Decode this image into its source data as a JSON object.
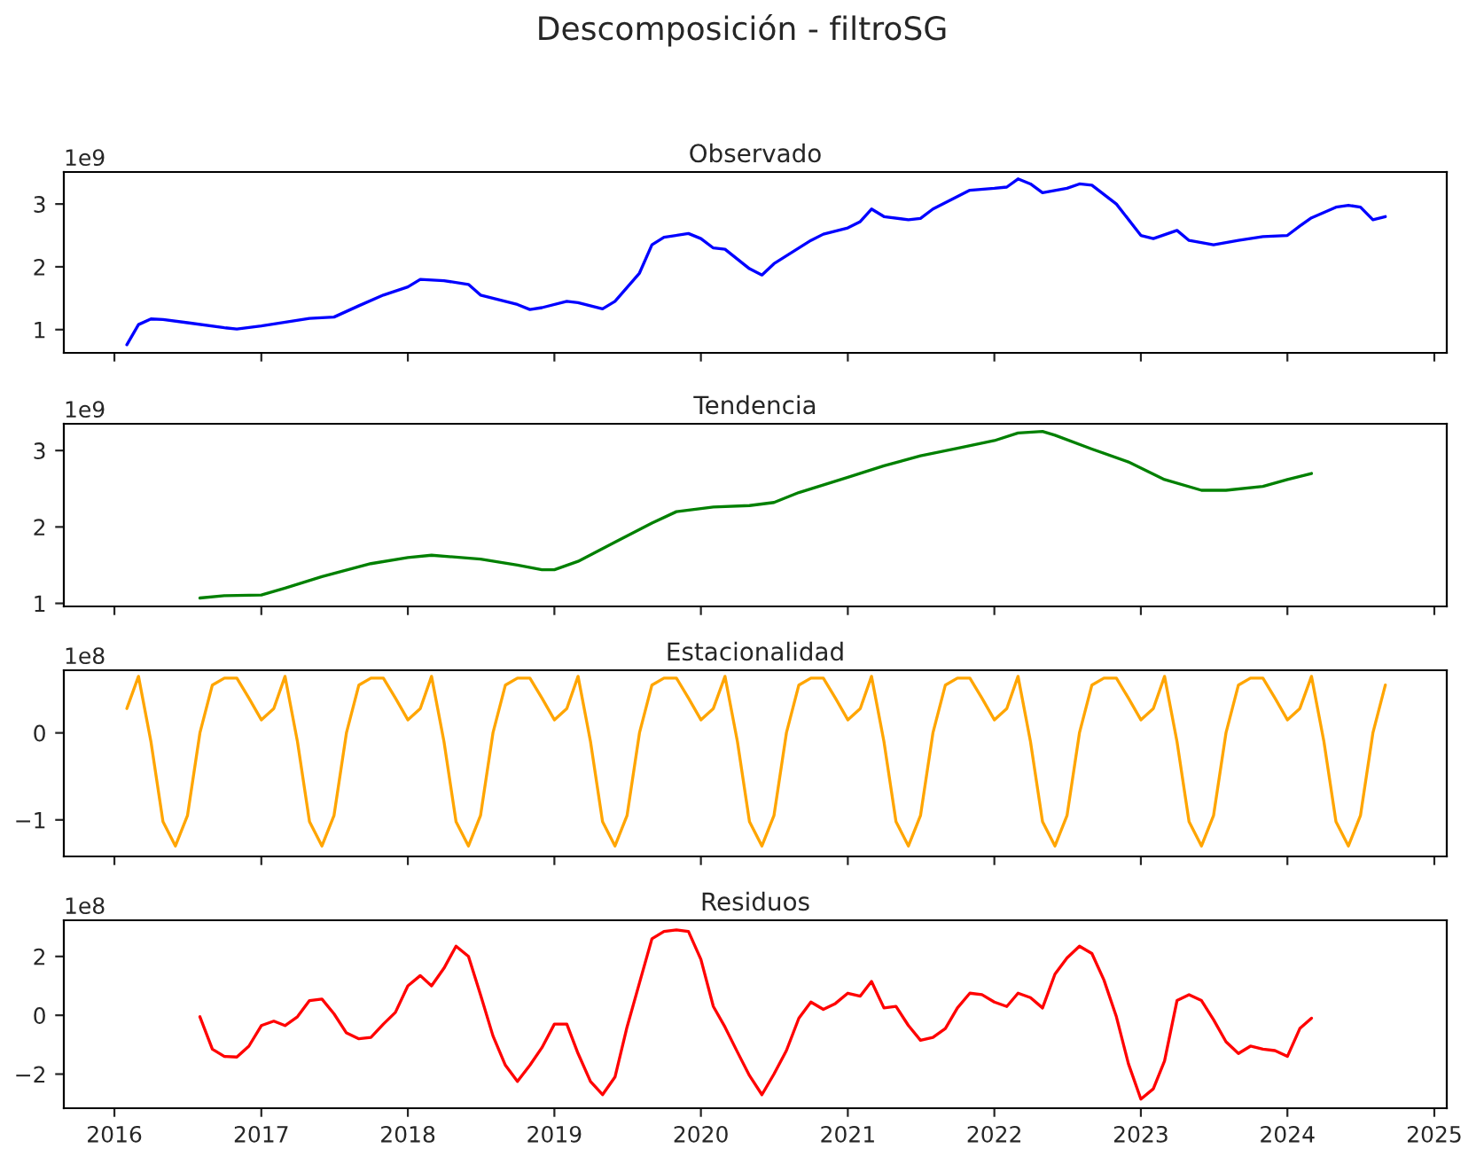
{
  "chart_data": [
    {
      "type": "line",
      "title": "Observado",
      "annotations": [
        "Descomposición - filtroSG",
        "1e9"
      ],
      "tick_labels": "y",
      "xlim": [
        "2015-08-28",
        "2025-02-01"
      ],
      "ylim": [
        0.63,
        3.51
      ],
      "yticks": [
        1,
        2,
        3
      ],
      "grid": false,
      "marker": "none",
      "line_style": "solid",
      "series": [
        {
          "color": "#0000ff",
          "x": [
            "2016-02",
            "2016-03",
            "2016-04",
            "2016-05",
            "2016-07",
            "2016-10",
            "2016-11",
            "2017-01",
            "2017-05",
            "2017-07",
            "2017-09",
            "2017-11",
            "2018-01",
            "2018-02",
            "2018-04",
            "2018-06",
            "2018-07",
            "2018-10",
            "2018-11",
            "2018-12",
            "2019-02",
            "2019-03",
            "2019-05",
            "2019-06",
            "2019-08",
            "2019-09",
            "2019-10",
            "2019-12",
            "2020-01",
            "2020-02",
            "2020-03",
            "2020-05",
            "2020-06",
            "2020-07",
            "2020-10",
            "2020-11",
            "2021-01",
            "2021-02",
            "2021-03",
            "2021-04",
            "2021-06",
            "2021-07",
            "2021-08",
            "2021-11",
            "2022-01",
            "2022-02",
            "2022-03",
            "2022-04",
            "2022-05",
            "2022-07",
            "2022-08",
            "2022-09",
            "2022-11",
            "2023-01",
            "2023-02",
            "2023-04",
            "2023-05",
            "2023-07",
            "2023-09",
            "2023-11",
            "2024-01",
            "2024-02",
            "2024-03",
            "2024-05",
            "2024-06",
            "2024-07",
            "2024-08",
            "2024-09"
          ],
          "values": [
            0.76,
            1.08,
            1.17,
            1.16,
            1.11,
            1.03,
            1.01,
            1.06,
            1.18,
            1.2,
            1.38,
            1.55,
            1.68,
            1.8,
            1.78,
            1.72,
            1.55,
            1.4,
            1.32,
            1.35,
            1.45,
            1.43,
            1.33,
            1.45,
            1.9,
            2.35,
            2.47,
            2.53,
            2.45,
            2.3,
            2.28,
            1.97,
            1.87,
            2.05,
            2.42,
            2.52,
            2.62,
            2.72,
            2.92,
            2.8,
            2.75,
            2.77,
            2.92,
            3.22,
            3.25,
            3.27,
            3.4,
            3.32,
            3.18,
            3.25,
            3.32,
            3.3,
            3.0,
            2.5,
            2.45,
            2.58,
            2.42,
            2.35,
            2.42,
            2.48,
            2.5,
            2.65,
            2.78,
            2.95,
            2.98,
            2.95,
            2.75,
            2.8
          ]
        }
      ]
    },
    {
      "type": "line",
      "title": "Tendencia",
      "annotations": [
        "1e9"
      ],
      "tick_labels": "y",
      "xlim": [
        "2015-08-28",
        "2025-02-01"
      ],
      "ylim": [
        0.96,
        3.35
      ],
      "yticks": [
        1,
        2,
        3
      ],
      "grid": false,
      "marker": "none",
      "line_style": "solid",
      "series": [
        {
          "color": "#008000",
          "x": [
            "2016-08",
            "2016-10",
            "2017-01",
            "2017-03",
            "2017-06",
            "2017-10",
            "2018-01",
            "2018-03",
            "2018-07",
            "2018-10",
            "2018-12",
            "2019-01",
            "2019-03",
            "2019-06",
            "2019-09",
            "2019-11",
            "2020-02",
            "2020-05",
            "2020-07",
            "2020-09",
            "2021-01",
            "2021-04",
            "2021-07",
            "2021-10",
            "2022-01",
            "2022-03",
            "2022-05",
            "2022-06",
            "2022-09",
            "2022-12",
            "2023-03",
            "2023-06",
            "2023-08",
            "2023-11",
            "2024-01",
            "2024-03"
          ],
          "values": [
            1.07,
            1.1,
            1.11,
            1.2,
            1.35,
            1.52,
            1.6,
            1.63,
            1.58,
            1.5,
            1.44,
            1.44,
            1.55,
            1.8,
            2.05,
            2.2,
            2.26,
            2.28,
            2.32,
            2.45,
            2.65,
            2.8,
            2.93,
            3.03,
            3.13,
            3.23,
            3.25,
            3.2,
            3.02,
            2.85,
            2.62,
            2.48,
            2.48,
            2.53,
            2.62,
            2.7
          ]
        }
      ]
    },
    {
      "type": "line",
      "title": "Estacionalidad",
      "annotations": [
        "1e8"
      ],
      "tick_labels": "y",
      "xlim": [
        "2015-08-28",
        "2025-02-01"
      ],
      "ylim": [
        -1.42,
        0.72
      ],
      "yticks": [
        {
          "value": -1,
          "label": "−1"
        },
        0
      ],
      "grid": false,
      "marker": "none",
      "line_style": "solid",
      "series": [
        {
          "color": "#ffa500",
          "x": [
            "2016-02",
            "2016-03",
            "2016-04",
            "2016-05",
            "2016-06",
            "2016-07",
            "2016-08",
            "2016-09",
            "2016-10",
            "2016-11",
            "2016-12",
            "2017-01",
            "2017-02",
            "2017-03",
            "2017-04",
            "2017-05",
            "2017-06",
            "2017-07",
            "2017-08",
            "2017-09",
            "2017-10",
            "2017-11",
            "2017-12",
            "2018-01",
            "2018-02",
            "2018-03",
            "2018-04",
            "2018-05",
            "2018-06",
            "2018-07",
            "2018-08",
            "2018-09",
            "2018-10",
            "2018-11",
            "2018-12",
            "2019-01",
            "2019-02",
            "2019-03",
            "2019-04",
            "2019-05",
            "2019-06",
            "2019-07",
            "2019-08",
            "2019-09",
            "2019-10",
            "2019-11",
            "2019-12",
            "2020-01",
            "2020-02",
            "2020-03",
            "2020-04",
            "2020-05",
            "2020-06",
            "2020-07",
            "2020-08",
            "2020-09",
            "2020-10",
            "2020-11",
            "2020-12",
            "2021-01",
            "2021-02",
            "2021-03",
            "2021-04",
            "2021-05",
            "2021-06",
            "2021-07",
            "2021-08",
            "2021-09",
            "2021-10",
            "2021-11",
            "2021-12",
            "2022-01",
            "2022-02",
            "2022-03",
            "2022-04",
            "2022-05",
            "2022-06",
            "2022-07",
            "2022-08",
            "2022-09",
            "2022-10",
            "2022-11",
            "2022-12",
            "2023-01",
            "2023-02",
            "2023-03",
            "2023-04",
            "2023-05",
            "2023-06",
            "2023-07",
            "2023-08",
            "2023-09",
            "2023-10",
            "2023-11",
            "2023-12",
            "2024-01",
            "2024-02",
            "2024-03",
            "2024-04",
            "2024-05",
            "2024-06",
            "2024-07",
            "2024-08",
            "2024-09"
          ],
          "values": [
            0.28,
            0.65,
            -0.1,
            -1.02,
            -1.3,
            -0.95,
            0.0,
            0.55,
            0.63,
            0.63,
            0.4,
            0.15,
            0.28,
            0.65,
            -0.1,
            -1.02,
            -1.3,
            -0.95,
            0.0,
            0.55,
            0.63,
            0.63,
            0.4,
            0.15,
            0.28,
            0.65,
            -0.1,
            -1.02,
            -1.3,
            -0.95,
            0.0,
            0.55,
            0.63,
            0.63,
            0.4,
            0.15,
            0.28,
            0.65,
            -0.1,
            -1.02,
            -1.3,
            -0.95,
            0.0,
            0.55,
            0.63,
            0.63,
            0.4,
            0.15,
            0.28,
            0.65,
            -0.1,
            -1.02,
            -1.3,
            -0.95,
            0.0,
            0.55,
            0.63,
            0.63,
            0.4,
            0.15,
            0.28,
            0.65,
            -0.1,
            -1.02,
            -1.3,
            -0.95,
            0.0,
            0.55,
            0.63,
            0.63,
            0.4,
            0.15,
            0.28,
            0.65,
            -0.1,
            -1.02,
            -1.3,
            -0.95,
            0.0,
            0.55,
            0.63,
            0.63,
            0.4,
            0.15,
            0.28,
            0.65,
            -0.1,
            -1.02,
            -1.3,
            -0.95,
            0.0,
            0.55,
            0.63,
            0.63,
            0.4,
            0.15,
            0.28,
            0.65,
            -0.1,
            -1.02,
            -1.3,
            -0.95,
            0.0,
            0.55
          ]
        }
      ]
    },
    {
      "type": "line",
      "title": "Residuos",
      "annotations": [
        "1e8"
      ],
      "xlim": [
        "2015-08-28",
        "2025-02-01"
      ],
      "xticks": [
        "2016",
        "2017",
        "2018",
        "2019",
        "2020",
        "2021",
        "2022",
        "2023",
        "2024",
        "2025"
      ],
      "ylim": [
        -3.16,
        3.23
      ],
      "yticks": [
        {
          "value": -2,
          "label": "−2"
        },
        0,
        2
      ],
      "grid": false,
      "marker": "none",
      "line_style": "solid",
      "series": [
        {
          "color": "#ff0000",
          "x": [
            "2016-08",
            "2016-09",
            "2016-10",
            "2016-11",
            "2016-12",
            "2017-01",
            "2017-02",
            "2017-03",
            "2017-04",
            "2017-05",
            "2017-06",
            "2017-07",
            "2017-08",
            "2017-09",
            "2017-10",
            "2017-11",
            "2017-12",
            "2018-01",
            "2018-02",
            "2018-03",
            "2018-04",
            "2018-05",
            "2018-06",
            "2018-07",
            "2018-08",
            "2018-09",
            "2018-10",
            "2018-11",
            "2018-12",
            "2019-01",
            "2019-02",
            "2019-03",
            "2019-04",
            "2019-05",
            "2019-06",
            "2019-07",
            "2019-08",
            "2019-09",
            "2019-10",
            "2019-11",
            "2019-12",
            "2020-01",
            "2020-02",
            "2020-03",
            "2020-04",
            "2020-05",
            "2020-06",
            "2020-07",
            "2020-08",
            "2020-09",
            "2020-10",
            "2020-11",
            "2020-12",
            "2021-01",
            "2021-02",
            "2021-03",
            "2021-04",
            "2021-05",
            "2021-06",
            "2021-07",
            "2021-08",
            "2021-09",
            "2021-10",
            "2021-11",
            "2021-12",
            "2022-01",
            "2022-02",
            "2022-03",
            "2022-04",
            "2022-05",
            "2022-06",
            "2022-07",
            "2022-08",
            "2022-09",
            "2022-10",
            "2022-11",
            "2022-12",
            "2023-01",
            "2023-02",
            "2023-03",
            "2023-04",
            "2023-05",
            "2023-06",
            "2023-07",
            "2023-08",
            "2023-09",
            "2023-10",
            "2023-11",
            "2023-12",
            "2024-01",
            "2024-02",
            "2024-03"
          ],
          "values": [
            -0.05,
            -1.15,
            -1.4,
            -1.42,
            -1.05,
            -0.35,
            -0.2,
            -0.35,
            -0.05,
            0.5,
            0.55,
            0.05,
            -0.6,
            -0.8,
            -0.75,
            -0.3,
            0.1,
            1.0,
            1.35,
            1.0,
            1.6,
            2.35,
            2.0,
            0.7,
            -0.7,
            -1.7,
            -2.25,
            -1.7,
            -1.1,
            -0.3,
            -0.3,
            -1.3,
            -2.25,
            -2.7,
            -2.1,
            -0.4,
            1.1,
            2.6,
            2.85,
            2.9,
            2.85,
            1.9,
            0.3,
            -0.4,
            -1.25,
            -2.05,
            -2.7,
            -2.0,
            -1.2,
            -0.1,
            0.45,
            0.2,
            0.4,
            0.75,
            0.65,
            1.15,
            0.25,
            0.3,
            -0.35,
            -0.85,
            -0.75,
            -0.45,
            0.25,
            0.75,
            0.7,
            0.45,
            0.3,
            0.75,
            0.6,
            0.25,
            1.4,
            1.95,
            2.35,
            2.1,
            1.2,
            -0.05,
            -1.65,
            -2.85,
            -2.5,
            -1.55,
            0.5,
            0.7,
            0.5,
            -0.15,
            -0.9,
            -1.3,
            -1.05,
            -1.15,
            -1.2,
            -1.4,
            -0.45,
            -0.1
          ]
        }
      ]
    }
  ]
}
